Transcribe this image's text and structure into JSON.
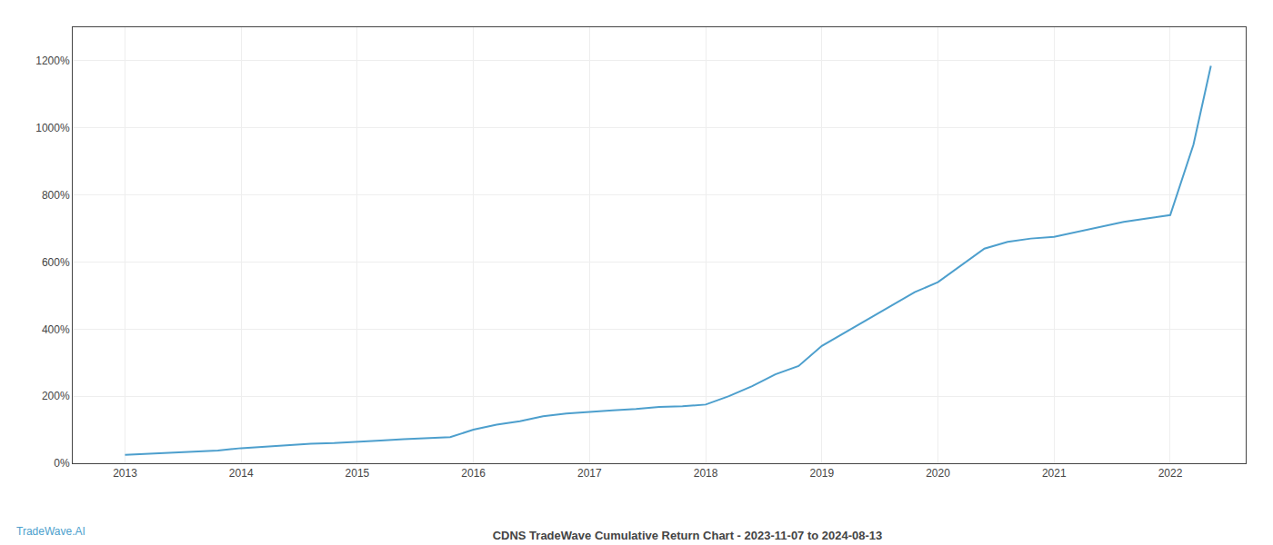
{
  "chart_data": {
    "type": "line",
    "title": "CDNS TradeWave Cumulative Return Chart - 2023-11-07 to 2024-08-13",
    "annotations": [
      "TradeWave.AI"
    ],
    "color": "#4d9fcd",
    "x": [
      2013.0,
      2013.2,
      2013.4,
      2013.6,
      2013.8,
      2014.0,
      2014.2,
      2014.4,
      2014.6,
      2014.8,
      2015.0,
      2015.2,
      2015.4,
      2015.6,
      2015.8,
      2016.0,
      2016.2,
      2016.4,
      2016.6,
      2016.8,
      2017.0,
      2017.2,
      2017.4,
      2017.6,
      2017.8,
      2018.0,
      2018.2,
      2018.4,
      2018.6,
      2018.8,
      2019.0,
      2019.2,
      2019.4,
      2019.6,
      2019.8,
      2020.0,
      2020.2,
      2020.4,
      2020.6,
      2020.8,
      2021.0,
      2021.2,
      2021.4,
      2021.6,
      2021.8,
      2022.0,
      2022.2,
      2022.35
    ],
    "values": [
      25,
      28,
      32,
      35,
      38,
      45,
      50,
      55,
      58,
      60,
      65,
      68,
      72,
      75,
      78,
      100,
      115,
      125,
      140,
      148,
      152,
      158,
      162,
      168,
      170,
      175,
      200,
      230,
      265,
      290,
      350,
      390,
      430,
      470,
      510,
      540,
      590,
      640,
      660,
      670,
      675,
      690,
      705,
      720,
      730,
      740,
      950,
      1185
    ],
    "xlim": [
      2012.55,
      2022.65
    ],
    "xticks": [
      2013,
      2014,
      2015,
      2016,
      2017,
      2018,
      2019,
      2020,
      2021,
      2022
    ],
    "ylim": [
      0,
      1300
    ],
    "yticks": [
      {
        "value": 0,
        "label": "0%"
      },
      {
        "value": 200,
        "label": "200%"
      },
      {
        "value": 400,
        "label": "400%"
      },
      {
        "value": 600,
        "label": "600%"
      },
      {
        "value": 800,
        "label": "800%"
      },
      {
        "value": 1000,
        "label": "1000%"
      },
      {
        "value": 1200,
        "label": "1200%"
      }
    ],
    "grid": true
  }
}
